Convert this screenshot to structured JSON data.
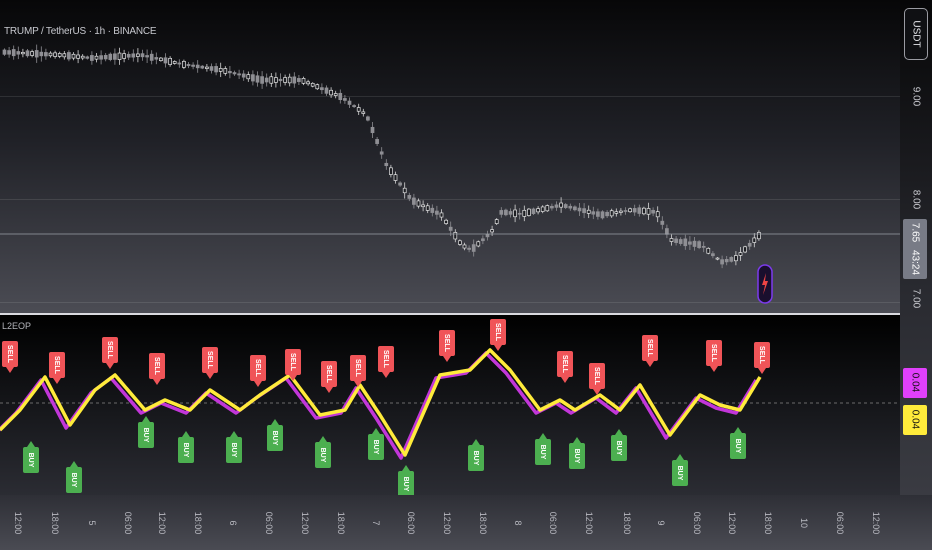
{
  "header": {
    "symbol_title": "TRUMP / TetherUS · 1h · BINANCE",
    "currency_button": "USDT"
  },
  "price_axis": {
    "labels": [
      {
        "text": "9.00",
        "price": 9.0
      },
      {
        "text": "8.00",
        "price": 8.0
      },
      {
        "text": "7.00",
        "price": 7.0
      }
    ],
    "last_price": {
      "price": "7.65",
      "countdown": "43:24",
      "color": "#787b86"
    }
  },
  "indicator": {
    "title": "L2EOP",
    "value_a": {
      "text": "0.04",
      "color": "#e040fb"
    },
    "value_b": {
      "text": "0.04",
      "color": "#ffeb3b"
    },
    "line_fast_color": "#ffeb3b",
    "line_slow_color": "#c236d9",
    "sell_label": "SELL",
    "buy_label": "BUY",
    "sell_color": "#f05458",
    "buy_color": "#4caf50"
  },
  "time_axis": {
    "ticks": [
      "12:00",
      "18:00",
      "5",
      "06:00",
      "12:00",
      "18:00",
      "6",
      "06:00",
      "12:00",
      "18:00",
      "7",
      "06:00",
      "12:00",
      "18:00",
      "8",
      "06:00",
      "12:00",
      "18:00",
      "9",
      "06:00",
      "12:00",
      "18:00",
      "10",
      "06:00",
      "12:00"
    ]
  },
  "icons": {
    "lightning": "lightning-icon"
  }
}
